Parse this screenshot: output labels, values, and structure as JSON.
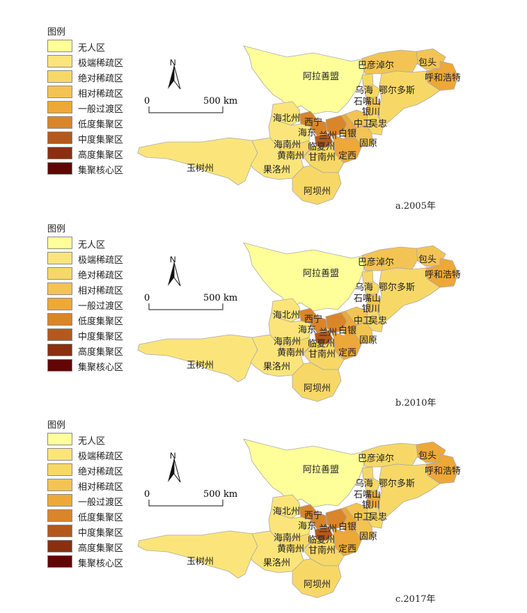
{
  "legend_title": "图例",
  "legend_items": [
    {
      "label": "无人区",
      "color": "#ffff99"
    },
    {
      "label": "极端稀疏区",
      "color": "#fbe57a"
    },
    {
      "label": "绝对稀疏区",
      "color": "#f7d866"
    },
    {
      "label": "相对稀疏区",
      "color": "#f3c453"
    },
    {
      "label": "一般过渡区",
      "color": "#eda838"
    },
    {
      "label": "低度集聚区",
      "color": "#d9852a"
    },
    {
      "label": "中度集聚区",
      "color": "#b4591b"
    },
    {
      "label": "高度集聚区",
      "color": "#8a2f10"
    },
    {
      "label": "集聚核心区",
      "color": "#640505"
    }
  ],
  "north_label": "N",
  "scale": {
    "start": "0",
    "end": "500 km"
  },
  "regions": {
    "alashan": "阿拉善盟",
    "bayannur": "巴彦淖尔",
    "baotou": "包头",
    "hohhot": "呼和浩特",
    "wuhai": "乌海",
    "ordos": "鄂尔多斯",
    "shizuishan": "石嘴山",
    "yinchuan": "银川",
    "zhongwei": "中卫",
    "wuzhong": "吴忠",
    "haibei": "海北州",
    "xining": "西宁",
    "haidong": "海东",
    "lanzhou": "兰州",
    "baiyin": "白银",
    "hainan": "海南州",
    "linxia": "临夏州",
    "guyuan": "固原",
    "huangnan": "黄南州",
    "gannan": "甘南州",
    "dingxi": "定西",
    "yushu": "玉树州",
    "golog": "果洛州",
    "aba": "阿坝州"
  },
  "panels": [
    {
      "caption": "a.2005年",
      "levels": {
        "alashan": 0,
        "bayannur": 3,
        "baotou": 3,
        "hohhot": 4,
        "ordos": 2,
        "wuhai": 2,
        "shizuishan": 2,
        "yinchuan": 3,
        "wuzhong": 2,
        "zhongwei": 3,
        "haibei": 1,
        "xining": 5,
        "haidong": 5,
        "lanzhou": 5,
        "baiyin": 4,
        "linxia": 6,
        "dingxi": 4,
        "guyuan": 3,
        "hainan": 1,
        "huangnan": 2,
        "gannan": 2,
        "yushu": 1,
        "golog": 1,
        "aba": 2
      }
    },
    {
      "caption": "b.2010年",
      "levels": {
        "alashan": 0,
        "bayannur": 3,
        "baotou": 3,
        "hohhot": 4,
        "ordos": 2,
        "wuhai": 2,
        "shizuishan": 2,
        "yinchuan": 3,
        "wuzhong": 2,
        "zhongwei": 3,
        "haibei": 1,
        "xining": 5,
        "haidong": 5,
        "lanzhou": 5,
        "baiyin": 4,
        "linxia": 6,
        "dingxi": 4,
        "guyuan": 3,
        "hainan": 1,
        "huangnan": 2,
        "gannan": 2,
        "yushu": 1,
        "golog": 1,
        "aba": 2
      }
    },
    {
      "caption": "c.2017年",
      "levels": {
        "alashan": 0,
        "bayannur": 2,
        "baotou": 4,
        "hohhot": 4,
        "ordos": 2,
        "wuhai": 2,
        "shizuishan": 2,
        "yinchuan": 4,
        "wuzhong": 2,
        "zhongwei": 3,
        "haibei": 1,
        "xining": 5,
        "haidong": 5,
        "lanzhou": 5,
        "baiyin": 4,
        "linxia": 6,
        "dingxi": 4,
        "guyuan": 3,
        "hainan": 1,
        "huangnan": 2,
        "gannan": 2,
        "yushu": 1,
        "golog": 1,
        "aba": 2
      }
    }
  ]
}
